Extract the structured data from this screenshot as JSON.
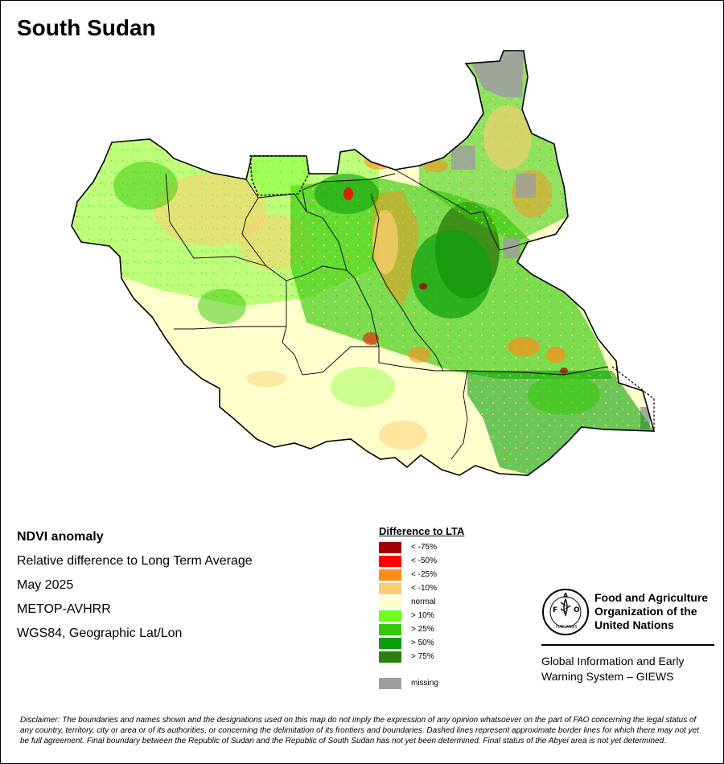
{
  "title": "South Sudan",
  "info": {
    "heading": "NDVI anomaly",
    "lines": [
      "Relative difference to Long Term Average",
      "May 2025",
      "METOP-AVHRR",
      "WGS84, Geographic Lat/Lon"
    ]
  },
  "legend": {
    "title": "Difference to LTA",
    "items": [
      {
        "label": "< -75%",
        "color": "#a00000"
      },
      {
        "label": "< -50%",
        "color": "#ff0000"
      },
      {
        "label": "< -25%",
        "color": "#ff8c1a"
      },
      {
        "label": "< -10%",
        "color": "#ffcc70"
      },
      {
        "label": "normal",
        "color": "#ffffcc"
      },
      {
        "label": "> 10%",
        "color": "#6cff1a"
      },
      {
        "label": "> 25%",
        "color": "#36c80a"
      },
      {
        "label": "> 50%",
        "color": "#0b9e0b"
      },
      {
        "label": "> 75%",
        "color": "#2e7d0f"
      }
    ],
    "missing": {
      "label": "missing",
      "color": "#9e9e9e"
    }
  },
  "organization": {
    "logo_text": "FAO",
    "seal_text": "FIAT PANIS",
    "name_lines": [
      "Food and Agriculture",
      "Organization of the",
      "United Nations"
    ],
    "system_lines": [
      "Global Information and Early",
      "Warning System – GIEWS"
    ]
  },
  "disclaimer": "Disclaimer: The boundaries and names shown and the designations used on this map do not imply the expression of any opinion whatsoever on the part of FAO concerning the legal status of any country, territory, city or area or of its authorities, or concerning the delimitation of its frontiers and boundaries. Dashed lines represent approximate border lines for which there may not yet be full agreement.  Final boundary between the Republic of Sudan and the Republic of South Sudan has not yet been determined. Final status of the Abyei area is not yet determined."
}
